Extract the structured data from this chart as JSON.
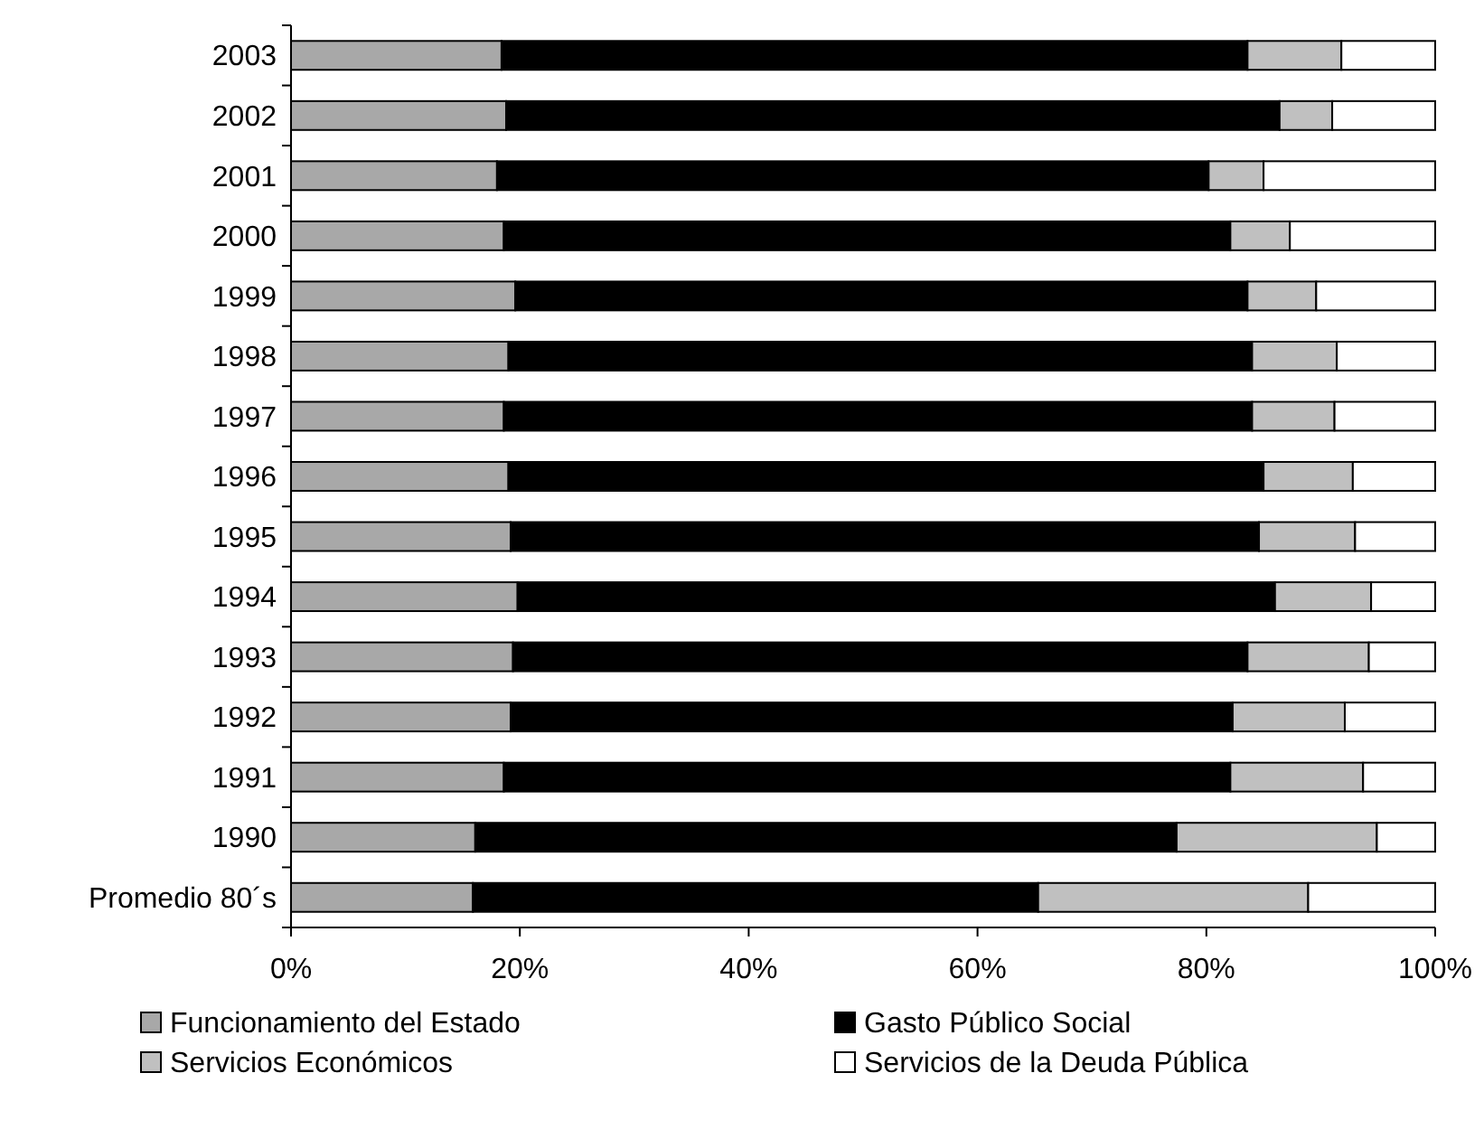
{
  "chart_data": {
    "type": "bar",
    "orientation": "horizontal",
    "stacked": true,
    "categories": [
      "2003",
      "2002",
      "2001",
      "2000",
      "1999",
      "1998",
      "1997",
      "1996",
      "1995",
      "1994",
      "1993",
      "1992",
      "1991",
      "1990",
      "Promedio 80´s"
    ],
    "series": [
      {
        "name": "Funcionamiento del Estado",
        "color": "#a8a8a8",
        "values": [
          18.4,
          18.8,
          18.0,
          18.6,
          19.6,
          19.0,
          18.6,
          19.0,
          19.2,
          19.8,
          19.4,
          19.2,
          18.6,
          16.1,
          15.9
        ]
      },
      {
        "name": "Gasto Público Social",
        "color": "#000000",
        "values": [
          65.2,
          67.6,
          62.2,
          63.5,
          64.0,
          65.0,
          65.4,
          66.0,
          65.4,
          66.2,
          64.2,
          63.1,
          63.5,
          61.3,
          49.4
        ]
      },
      {
        "name": "Servicios Económicos",
        "color": "#c0c0c0",
        "values": [
          8.2,
          4.6,
          4.8,
          5.2,
          6.0,
          7.4,
          7.2,
          7.8,
          8.4,
          8.4,
          10.6,
          9.8,
          11.6,
          17.5,
          23.6
        ]
      },
      {
        "name": "Servicios de la Deuda Pública",
        "color": "#ffffff",
        "values": [
          8.2,
          9.0,
          15.0,
          12.7,
          10.4,
          8.6,
          8.8,
          7.2,
          7.0,
          5.6,
          5.8,
          7.9,
          6.3,
          5.1,
          11.1
        ]
      }
    ],
    "xlim": [
      0,
      100
    ],
    "xticks": [
      {
        "value": 0,
        "label": "0%"
      },
      {
        "value": 20,
        "label": "20%"
      },
      {
        "value": 40,
        "label": "40%"
      },
      {
        "value": 60,
        "label": "60%"
      },
      {
        "value": 80,
        "label": "80%"
      },
      {
        "value": 100,
        "label": "100%"
      }
    ],
    "grid": false,
    "legend": "bottom"
  }
}
